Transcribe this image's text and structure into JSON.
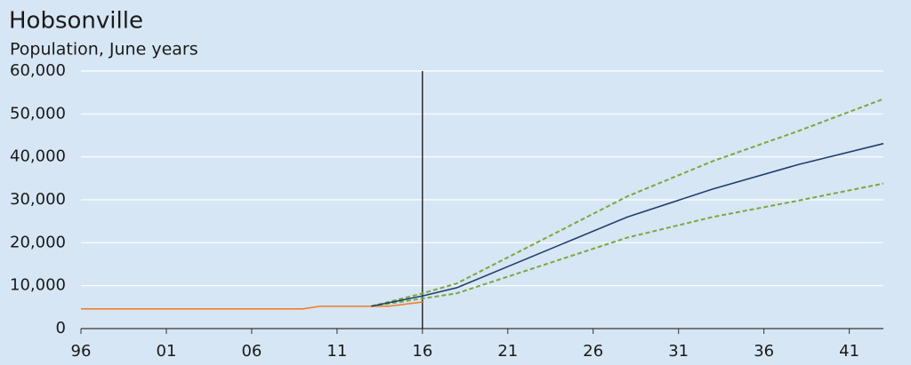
{
  "chart_data": {
    "type": "line",
    "title": "Hobsonville",
    "subtitle": "Population, June years",
    "xlim": [
      1996,
      2043
    ],
    "xticks": [
      {
        "value": 1996,
        "label": "96"
      },
      {
        "value": 2001,
        "label": "01"
      },
      {
        "value": 2006,
        "label": "06"
      },
      {
        "value": 2011,
        "label": "11"
      },
      {
        "value": 2016,
        "label": "16"
      },
      {
        "value": 2021,
        "label": "21"
      },
      {
        "value": 2026,
        "label": "26"
      },
      {
        "value": 2031,
        "label": "31"
      },
      {
        "value": 2036,
        "label": "36"
      },
      {
        "value": 2041,
        "label": "41"
      }
    ],
    "ylim": [
      0,
      60000
    ],
    "yticks": [
      0,
      {
        "value": 10000,
        "label": "10,000"
      },
      {
        "value": 20000,
        "label": "20,000"
      },
      {
        "value": 30000,
        "label": "30,000"
      },
      {
        "value": 40000,
        "label": "40,000"
      },
      {
        "value": 50000,
        "label": "50,000"
      },
      {
        "value": 60000,
        "label": "60,000"
      }
    ],
    "grid": true,
    "vline": 2016,
    "series": [
      {
        "color": "#f07f2a",
        "dash": false,
        "x": [
          1996,
          2009,
          2010,
          2014,
          2016
        ],
        "values": [
          4600,
          4600,
          5200,
          5200,
          6200
        ]
      },
      {
        "color": "#7aa83e",
        "dash": true,
        "x": [
          2013,
          2016,
          2018,
          2028,
          2033,
          2038,
          2043
        ],
        "values": [
          5200,
          8200,
          10500,
          30800,
          39000,
          46000,
          53500
        ]
      },
      {
        "color": "#7aa83e",
        "dash": true,
        "x": [
          2013,
          2016,
          2018,
          2028,
          2033,
          2038,
          2043
        ],
        "values": [
          5200,
          7000,
          8200,
          21200,
          26000,
          29800,
          33800
        ]
      },
      {
        "color": "#1f3f6e",
        "dash": false,
        "x": [
          2013,
          2016,
          2018,
          2028,
          2033,
          2038,
          2043
        ],
        "values": [
          5200,
          7600,
          9500,
          26000,
          32500,
          38200,
          43100
        ]
      }
    ]
  }
}
